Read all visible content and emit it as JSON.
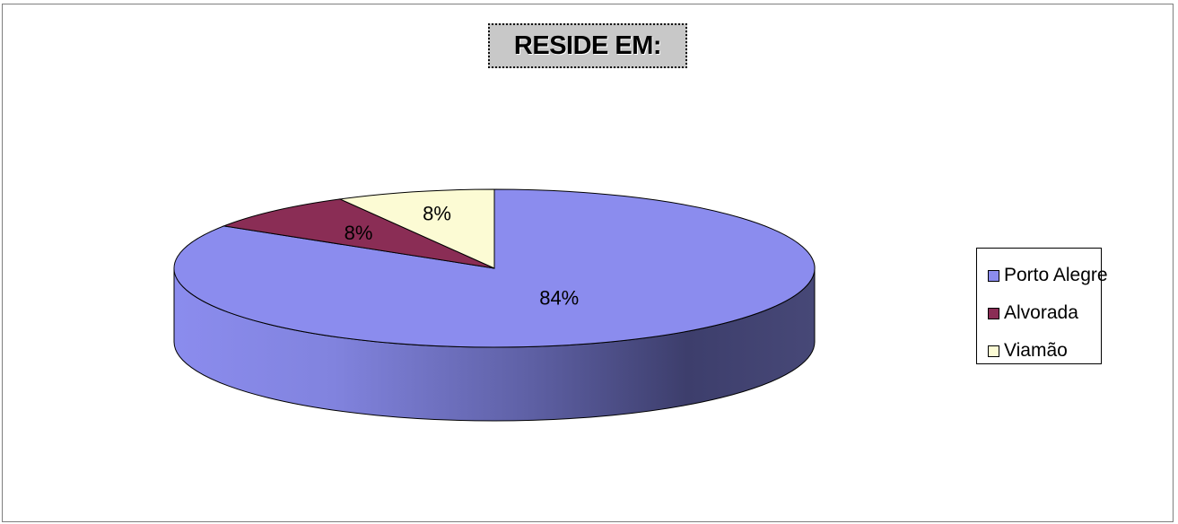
{
  "chart_data": {
    "type": "pie",
    "title": "RESIDE EM:",
    "categories": [
      "Porto Alegre",
      "Alvorada",
      "Viamão"
    ],
    "values": [
      84,
      8,
      8
    ],
    "data_labels": [
      "84%",
      "8%",
      "8%"
    ],
    "colors": [
      "#8b8cee",
      "#8a2d55",
      "#fcfbd4"
    ],
    "side_colors": [
      "#4b4c86",
      "#4e1830",
      "#9a9880"
    ],
    "legend_placement": "right",
    "three_d": true
  }
}
